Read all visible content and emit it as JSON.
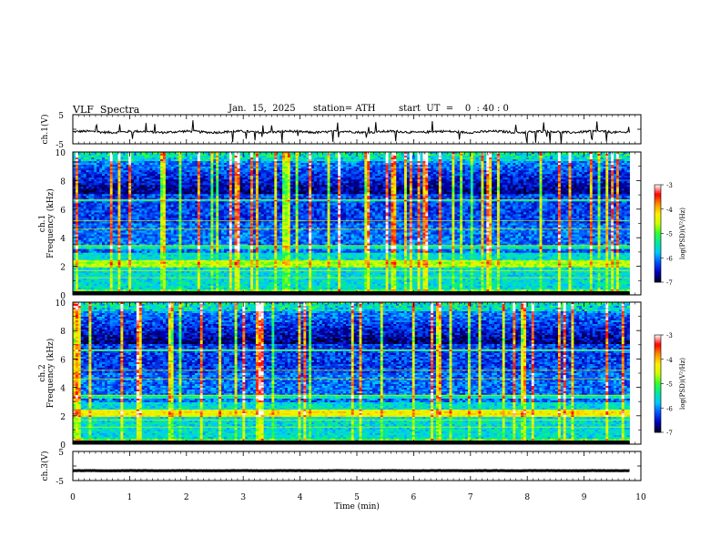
{
  "header": {
    "title": "VLF  Spectra",
    "date": "Jan.  15,  2025",
    "station": "station= ATH",
    "start_ut": "start  UT  =    0  : 40 : 0"
  },
  "chart_data": [
    {
      "type": "line",
      "name": "ch1-waveform",
      "ylabel": "ch.1(V)",
      "ylim": [
        -5,
        5
      ],
      "yticks": [
        "5",
        "-5"
      ],
      "xlim": [
        0,
        10
      ],
      "data_extent_min": 9.8,
      "baseline_v": -0.9,
      "noise_amplitude_v": 0.8
    },
    {
      "type": "heatmap",
      "name": "ch1-spectrogram",
      "ylabel": [
        "ch.1",
        "Frequency  (kHz)"
      ],
      "ylim": [
        0,
        10
      ],
      "yticks": [
        "0",
        "2",
        "4",
        "6",
        "8",
        "10"
      ],
      "xlim": [
        0,
        10
      ],
      "data_extent_min": 9.8,
      "colorbar": {
        "label": "log(PSD)(V²/Hz)",
        "range": [
          -7,
          -3
        ],
        "ticks": [
          "-3",
          "-4",
          "-5",
          "-6",
          "-7"
        ]
      }
    },
    {
      "type": "heatmap",
      "name": "ch2-spectrogram",
      "ylabel": [
        "ch.2",
        "Frequency  (kHz)"
      ],
      "ylim": [
        0,
        10
      ],
      "yticks": [
        "0",
        "2",
        "4",
        "6",
        "8",
        "10"
      ],
      "xlim": [
        0,
        10
      ],
      "data_extent_min": 9.8,
      "colorbar": {
        "label": "log(PSD)(V²/Hz)",
        "range": [
          -7,
          -3
        ],
        "ticks": [
          "-3",
          "-4",
          "-5",
          "-6",
          "-7"
        ]
      }
    },
    {
      "type": "line",
      "name": "ch3-waveform",
      "ylabel": "ch.3(V)",
      "ylim": [
        -5,
        5
      ],
      "yticks": [
        "5",
        "-5"
      ],
      "xlim": [
        0,
        10
      ],
      "data_extent_min": 9.8,
      "baseline_v": -1.6,
      "noise_amplitude_v": 0.1
    }
  ],
  "xaxis": {
    "label": "Time  (min)",
    "ticks": [
      "0",
      "1",
      "2",
      "3",
      "4",
      "5",
      "6",
      "7",
      "8",
      "9",
      "10"
    ]
  },
  "colors": {
    "axis": "#000000",
    "trace": "#000000",
    "colormap": [
      "#000020",
      "#0000b8",
      "#0050ff",
      "#00c8ff",
      "#00e8a0",
      "#30ff30",
      "#ccff00",
      "#ffee00",
      "#ff9000",
      "#ff0000",
      "#ffffff"
    ]
  }
}
